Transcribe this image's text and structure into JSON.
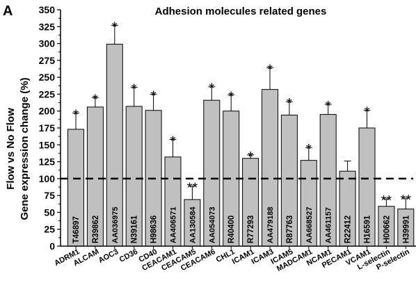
{
  "chart_data": {
    "type": "bar",
    "panel_label": "A",
    "title": "Adhesion molecules related genes",
    "ylabel_line1": "Flow vs No Flow",
    "ylabel_line2": "Gene expression change (%)",
    "ylim": [
      0,
      350
    ],
    "yticks": [
      0,
      25,
      50,
      75,
      100,
      125,
      150,
      175,
      200,
      225,
      250,
      275,
      300,
      325,
      350
    ],
    "reference_line": 100,
    "categories": [
      "ADRM1",
      "ALCAM",
      "AOC3",
      "CD36",
      "CD40",
      "CEACAM1",
      "CEACAM5",
      "CEACAM6",
      "CHL1",
      "ICAM1",
      "ICAM3",
      "ICAM5",
      "MADCAM1",
      "NCAM1",
      "PECAM1",
      "VCAM1",
      "L-selectin",
      "P-selectin"
    ],
    "accessions": [
      "T46897",
      "R39862",
      "AA036975",
      "N39161",
      "H98636",
      "AA406571",
      "AA130584",
      "AA054073",
      "R40400",
      "R77293",
      "AA479188",
      "R87763",
      "AA668527",
      "AA461157",
      "R22412",
      "H16591",
      "H00662",
      "H39991"
    ],
    "values": [
      173,
      206,
      299,
      207,
      201,
      132,
      69,
      216,
      200,
      130,
      232,
      194,
      127,
      195,
      111,
      175,
      59,
      55
    ],
    "errors": [
      24,
      14,
      28,
      28,
      24,
      26,
      20,
      20,
      24,
      5,
      32,
      20,
      19,
      15,
      15,
      26,
      11,
      16
    ],
    "significance": [
      "*",
      "*",
      "*",
      "*",
      "*",
      "*",
      "**",
      "*",
      "*",
      "*",
      "*",
      "*",
      "*",
      "*",
      "",
      "*",
      "**",
      "**"
    ],
    "colors": {
      "bar": "#c0c0c0",
      "edge": "#000000",
      "reference": "#000000"
    }
  }
}
